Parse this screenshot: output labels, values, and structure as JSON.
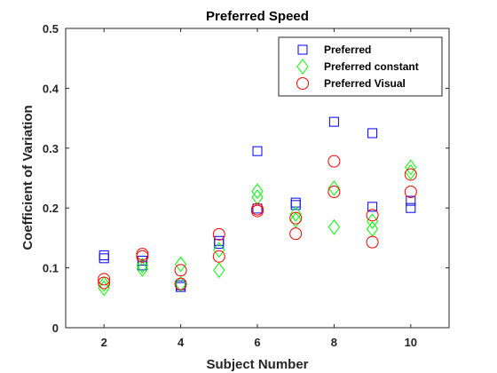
{
  "chart_data": {
    "type": "scatter",
    "title": "Preferred Speed",
    "xlabel": "Subject Number",
    "ylabel": "Coefficient of Variation",
    "xlim": [
      1,
      11
    ],
    "ylim": [
      0,
      0.5
    ],
    "xticks": [
      2,
      4,
      6,
      8,
      10
    ],
    "yticks": [
      0,
      0.1,
      0.2,
      0.3,
      0.4,
      0.5
    ],
    "ytick_labels": [
      "0",
      "0.1",
      "0.2",
      "0.3",
      "0.4",
      "0.5"
    ],
    "grid": false,
    "legend_position": "top-right",
    "series": [
      {
        "name": "Preferred",
        "marker": "square",
        "color": "#0000ff",
        "points": [
          {
            "x": 2,
            "y": 0.121
          },
          {
            "x": 2,
            "y": 0.116
          },
          {
            "x": 3,
            "y": 0.112
          },
          {
            "x": 3,
            "y": 0.104
          },
          {
            "x": 4,
            "y": 0.071
          },
          {
            "x": 4,
            "y": 0.068
          },
          {
            "x": 5,
            "y": 0.145
          },
          {
            "x": 5,
            "y": 0.14
          },
          {
            "x": 6,
            "y": 0.295
          },
          {
            "x": 6,
            "y": 0.199
          },
          {
            "x": 7,
            "y": 0.209
          },
          {
            "x": 7,
            "y": 0.205
          },
          {
            "x": 8,
            "y": 0.344
          },
          {
            "x": 9,
            "y": 0.325
          },
          {
            "x": 9,
            "y": 0.202
          },
          {
            "x": 10,
            "y": 0.212
          },
          {
            "x": 10,
            "y": 0.2
          }
        ]
      },
      {
        "name": "Preferred constant",
        "marker": "diamond",
        "color": "#00ff00",
        "points": [
          {
            "x": 2,
            "y": 0.066
          },
          {
            "x": 2,
            "y": 0.073
          },
          {
            "x": 3,
            "y": 0.098
          },
          {
            "x": 3,
            "y": 0.104
          },
          {
            "x": 4,
            "y": 0.106
          },
          {
            "x": 4,
            "y": 0.073
          },
          {
            "x": 5,
            "y": 0.096
          },
          {
            "x": 5,
            "y": 0.13
          },
          {
            "x": 6,
            "y": 0.228
          },
          {
            "x": 6,
            "y": 0.218
          },
          {
            "x": 7,
            "y": 0.19
          },
          {
            "x": 7,
            "y": 0.18
          },
          {
            "x": 8,
            "y": 0.233
          },
          {
            "x": 8,
            "y": 0.168
          },
          {
            "x": 9,
            "y": 0.178
          },
          {
            "x": 9,
            "y": 0.165
          },
          {
            "x": 10,
            "y": 0.268
          },
          {
            "x": 10,
            "y": 0.26
          }
        ]
      },
      {
        "name": "Preferred Visual",
        "marker": "circle",
        "color": "#ff0000",
        "points": [
          {
            "x": 2,
            "y": 0.081
          },
          {
            "x": 2,
            "y": 0.075
          },
          {
            "x": 3,
            "y": 0.123
          },
          {
            "x": 3,
            "y": 0.119
          },
          {
            "x": 4,
            "y": 0.096
          },
          {
            "x": 4,
            "y": 0.073
          },
          {
            "x": 5,
            "y": 0.156
          },
          {
            "x": 5,
            "y": 0.119
          },
          {
            "x": 6,
            "y": 0.198
          },
          {
            "x": 6,
            "y": 0.195
          },
          {
            "x": 7,
            "y": 0.183
          },
          {
            "x": 7,
            "y": 0.157
          },
          {
            "x": 8,
            "y": 0.278
          },
          {
            "x": 8,
            "y": 0.227
          },
          {
            "x": 9,
            "y": 0.188
          },
          {
            "x": 9,
            "y": 0.143
          },
          {
            "x": 10,
            "y": 0.256
          },
          {
            "x": 10,
            "y": 0.227
          }
        ]
      }
    ]
  }
}
